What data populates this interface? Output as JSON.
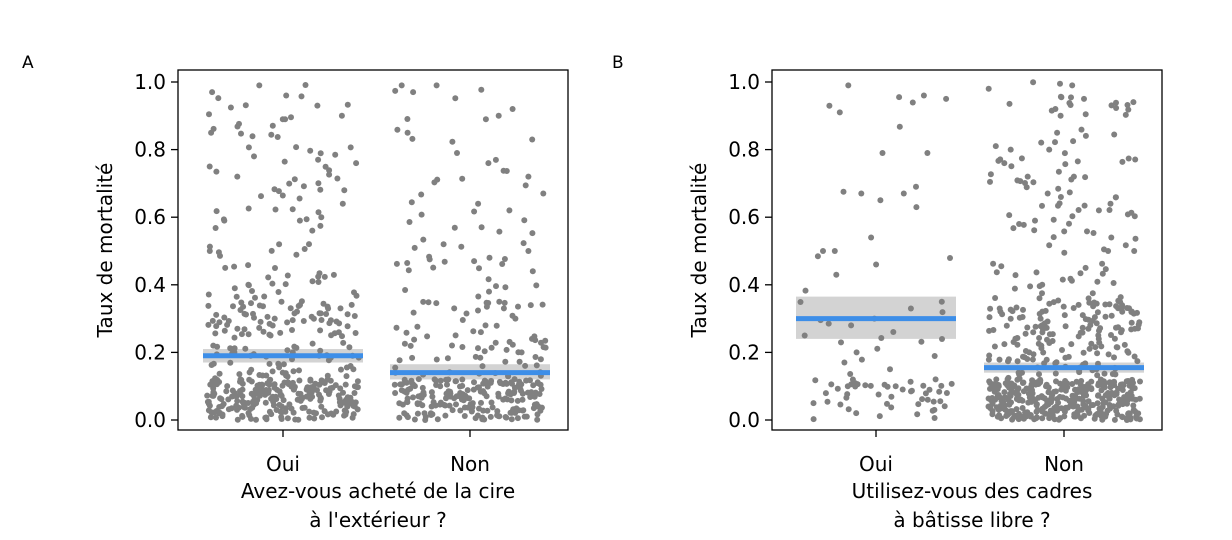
{
  "colors": {
    "points": "#808080",
    "mean_line": "#3d8ee8",
    "ci_band": "#d3d3d3",
    "axis": "#000000"
  },
  "chart_data": [
    {
      "panel": "A",
      "type": "scatter",
      "ylabel": "Taux de mortalité",
      "xlabel_lines": [
        "Avez-vous acheté de la cire",
        "à l'extérieur ?"
      ],
      "categories": [
        "Oui",
        "Non"
      ],
      "ylim": [
        0,
        1
      ],
      "yticks": [
        0.0,
        0.2,
        0.4,
        0.6,
        0.8,
        1.0
      ],
      "ytick_labels": [
        "0.0",
        "0.2",
        "0.4",
        "0.6",
        "0.8",
        "1.0"
      ],
      "means": [
        0.19,
        0.14
      ],
      "ci": [
        [
          0.17,
          0.21
        ],
        [
          0.12,
          0.165
        ]
      ],
      "series": [
        {
          "category": "Oui",
          "n_points": 460,
          "values_sample": [
            0.99,
            0.97,
            0.96,
            0.9,
            0.89,
            0.85,
            0.78,
            0.77,
            0.76,
            0.75,
            0.72,
            0.68,
            0.64,
            0.6,
            0.59,
            0.59,
            0.52,
            0.5,
            0.45,
            0.4,
            0.39,
            0.35,
            0.33,
            0.3,
            0.27,
            0.25,
            0.22,
            0.2,
            0.19,
            0.18,
            0.15,
            0.13,
            0.12,
            0.1,
            0.09,
            0.08,
            0.07,
            0.06,
            0.05,
            0.04,
            0.03,
            0.02
          ]
        },
        {
          "category": "Non",
          "n_points": 330,
          "values_sample": [
            0.97,
            0.92,
            0.9,
            0.89,
            0.85,
            0.83,
            0.79,
            0.76,
            0.72,
            0.67,
            0.64,
            0.62,
            0.57,
            0.52,
            0.5,
            0.47,
            0.44,
            0.38,
            0.34,
            0.3,
            0.28,
            0.26,
            0.24,
            0.2,
            0.18,
            0.16,
            0.14,
            0.12,
            0.1,
            0.08,
            0.07,
            0.06,
            0.05,
            0.04,
            0.03,
            0.02,
            0.01
          ]
        }
      ]
    },
    {
      "panel": "B",
      "type": "scatter",
      "ylabel": "Taux de mortalité",
      "xlabel_lines": [
        "Utilisez-vous des cadres",
        "à bâtisse libre ?"
      ],
      "categories": [
        "Oui",
        "Non"
      ],
      "ylim": [
        0,
        1
      ],
      "yticks": [
        0.0,
        0.2,
        0.4,
        0.6,
        0.8,
        1.0
      ],
      "ytick_labels": [
        "0.0",
        "0.2",
        "0.4",
        "0.6",
        "0.8",
        "1.0"
      ],
      "means": [
        0.3,
        0.155
      ],
      "ci": [
        [
          0.24,
          0.365
        ],
        [
          0.14,
          0.17
        ]
      ],
      "series": [
        {
          "category": "Oui",
          "n_points": 95,
          "values_sample": [
            0.99,
            0.96,
            0.95,
            0.93,
            0.91,
            0.79,
            0.79,
            0.69,
            0.67,
            0.67,
            0.65,
            0.63,
            0.54,
            0.5,
            0.5,
            0.46,
            0.43,
            0.35,
            0.33,
            0.3,
            0.28,
            0.25,
            0.2,
            0.17,
            0.15,
            0.12,
            0.1,
            0.08,
            0.06,
            0.05,
            0.03
          ]
        },
        {
          "category": "Non",
          "n_points": 640,
          "values_sample": [
            0.99,
            0.98,
            0.95,
            0.92,
            0.9,
            0.85,
            0.8,
            0.76,
            0.72,
            0.67,
            0.62,
            0.58,
            0.54,
            0.5,
            0.45,
            0.4,
            0.36,
            0.33,
            0.3,
            0.27,
            0.24,
            0.2,
            0.18,
            0.15,
            0.12,
            0.1,
            0.08,
            0.06,
            0.05,
            0.04,
            0.03,
            0.02,
            0.01
          ]
        }
      ]
    }
  ]
}
